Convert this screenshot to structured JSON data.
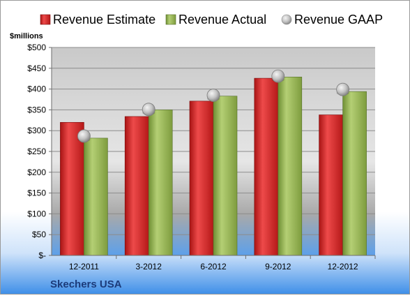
{
  "chart_data": {
    "type": "bar",
    "company": "Skechers USA",
    "ylabel": "$millions",
    "categories": [
      "12-2011",
      "3-2012",
      "6-2012",
      "9-2012",
      "12-2012"
    ],
    "series": [
      {
        "name": "Revenue Estimate",
        "kind": "bar",
        "color": "#cc1f1f",
        "values": [
          320,
          334,
          371,
          426,
          338
        ]
      },
      {
        "name": "Revenue Actual",
        "kind": "bar",
        "color": "#8fb04a",
        "values": [
          282,
          350,
          383,
          429,
          394
        ]
      },
      {
        "name": "Revenue GAAP",
        "kind": "marker",
        "color": "#b9b9b9",
        "values": [
          287,
          351,
          385,
          431,
          399
        ]
      }
    ],
    "ylim": [
      0,
      500
    ],
    "yticks": [
      0,
      50,
      100,
      150,
      200,
      250,
      300,
      350,
      400,
      450,
      500
    ],
    "ytick_labels": [
      "$-",
      "$50",
      "$100",
      "$150",
      "$200",
      "$250",
      "$300",
      "$350",
      "$400",
      "$450",
      "$500"
    ],
    "grid": true,
    "legend_position": "top"
  }
}
